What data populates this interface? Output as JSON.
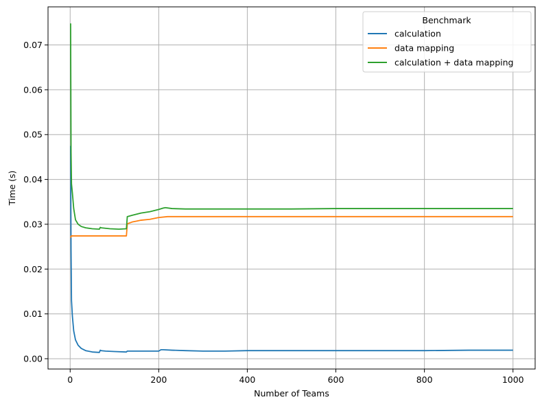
{
  "chart_data": {
    "type": "line",
    "xlabel": "Number of Teams",
    "ylabel": "Time (s)",
    "xlim": [
      -50,
      1050
    ],
    "ylim": [
      -0.0023,
      0.0785
    ],
    "xticks": [
      0,
      200,
      400,
      600,
      800,
      1000
    ],
    "xtick_labels": [
      "0",
      "200",
      "400",
      "600",
      "800",
      "1000"
    ],
    "yticks": [
      0.0,
      0.01,
      0.02,
      0.03,
      0.04,
      0.05,
      0.06,
      0.07
    ],
    "ytick_labels": [
      "0.00",
      "0.01",
      "0.02",
      "0.03",
      "0.04",
      "0.05",
      "0.06",
      "0.07"
    ],
    "grid": true,
    "legend": {
      "title": "Benchmark",
      "placement": "top-right"
    },
    "series": [
      {
        "name": "calculation",
        "color": "#1f77b4",
        "x": [
          1,
          2,
          3,
          5,
          8,
          12,
          18,
          25,
          35,
          50,
          66,
          68,
          70,
          80,
          100,
          127,
          129,
          140,
          160,
          200,
          205,
          210,
          230,
          260,
          300,
          350,
          400,
          500,
          600,
          700,
          800,
          900,
          1000
        ],
        "y": [
          0.0475,
          0.024,
          0.013,
          0.0095,
          0.0062,
          0.0042,
          0.003,
          0.0023,
          0.0018,
          0.0015,
          0.0014,
          0.0019,
          0.0018,
          0.0017,
          0.0016,
          0.0015,
          0.0017,
          0.0017,
          0.0017,
          0.0017,
          0.002,
          0.002,
          0.0019,
          0.0018,
          0.0017,
          0.0017,
          0.0018,
          0.0018,
          0.0018,
          0.0018,
          0.0018,
          0.0019,
          0.0019
        ]
      },
      {
        "name": "data mapping",
        "color": "#ff7f0e",
        "x": [
          1,
          2,
          3,
          10,
          20,
          40,
          60,
          80,
          100,
          127,
          129,
          140,
          150,
          160,
          180,
          200,
          220,
          300,
          400,
          500,
          600,
          700,
          800,
          900,
          1000
        ],
        "y": [
          0.027,
          0.0273,
          0.0274,
          0.0274,
          0.0274,
          0.0274,
          0.0274,
          0.0274,
          0.0274,
          0.0274,
          0.0301,
          0.0305,
          0.0307,
          0.0309,
          0.0311,
          0.0315,
          0.0317,
          0.0317,
          0.0317,
          0.0317,
          0.0317,
          0.0317,
          0.0317,
          0.0317,
          0.0317
        ]
      },
      {
        "name": "calculation + data mapping",
        "color": "#2ca02c",
        "x": [
          1,
          2,
          3,
          5,
          8,
          12,
          18,
          25,
          35,
          50,
          66,
          68,
          70,
          90,
          110,
          127,
          129,
          140,
          160,
          180,
          200,
          210,
          215,
          230,
          260,
          300,
          400,
          500,
          600,
          700,
          800,
          900,
          1000
        ],
        "y": [
          0.0748,
          0.046,
          0.039,
          0.037,
          0.0335,
          0.031,
          0.03,
          0.0295,
          0.0292,
          0.029,
          0.0289,
          0.0293,
          0.0292,
          0.029,
          0.0289,
          0.029,
          0.0317,
          0.032,
          0.0325,
          0.0328,
          0.0333,
          0.0336,
          0.0337,
          0.0335,
          0.0334,
          0.0334,
          0.0334,
          0.0334,
          0.0335,
          0.0335,
          0.0335,
          0.0335,
          0.0335
        ]
      }
    ]
  }
}
